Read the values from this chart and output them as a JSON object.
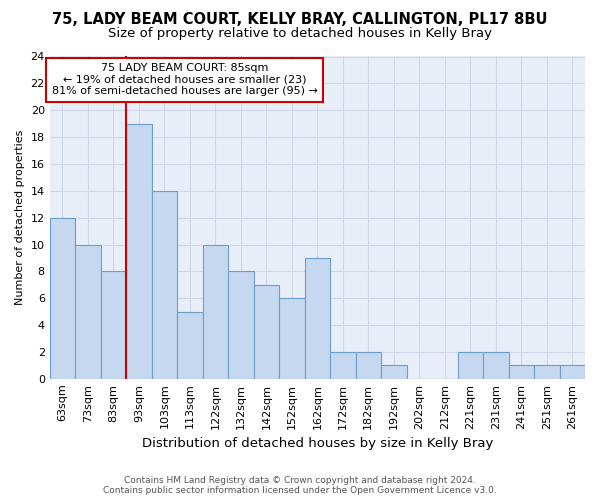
{
  "title": "75, LADY BEAM COURT, KELLY BRAY, CALLINGTON, PL17 8BU",
  "subtitle": "Size of property relative to detached houses in Kelly Bray",
  "xlabel": "Distribution of detached houses by size in Kelly Bray",
  "ylabel": "Number of detached properties",
  "categories": [
    "63sqm",
    "73sqm",
    "83sqm",
    "93sqm",
    "103sqm",
    "113sqm",
    "122sqm",
    "132sqm",
    "142sqm",
    "152sqm",
    "162sqm",
    "172sqm",
    "182sqm",
    "192sqm",
    "202sqm",
    "212sqm",
    "221sqm",
    "231sqm",
    "241sqm",
    "251sqm",
    "261sqm"
  ],
  "values": [
    12,
    10,
    8,
    19,
    14,
    5,
    10,
    8,
    7,
    6,
    9,
    2,
    2,
    1,
    0,
    0,
    2,
    2,
    1,
    1,
    1
  ],
  "bar_color": "#c5d8f0",
  "bar_edge_color": "#6b9ec8",
  "bar_width": 1.0,
  "annotation_title": "75 LADY BEAM COURT: 85sqm",
  "annotation_line1": "← 19% of detached houses are smaller (23)",
  "annotation_line2": "81% of semi-detached houses are larger (95) →",
  "annotation_box_color": "#ffffff",
  "annotation_box_edge_color": "#cc0000",
  "red_line_color": "#cc0000",
  "ylim": [
    0,
    24
  ],
  "yticks": [
    0,
    2,
    4,
    6,
    8,
    10,
    12,
    14,
    16,
    18,
    20,
    22,
    24
  ],
  "grid_color": "#d0d8e8",
  "background_color": "#e8eef8",
  "footer_line1": "Contains HM Land Registry data © Crown copyright and database right 2024.",
  "footer_line2": "Contains public sector information licensed under the Open Government Licence v3.0.",
  "title_fontsize": 10.5,
  "subtitle_fontsize": 9.5,
  "xlabel_fontsize": 9.5,
  "ylabel_fontsize": 8,
  "tick_fontsize": 8,
  "footer_fontsize": 6.5
}
